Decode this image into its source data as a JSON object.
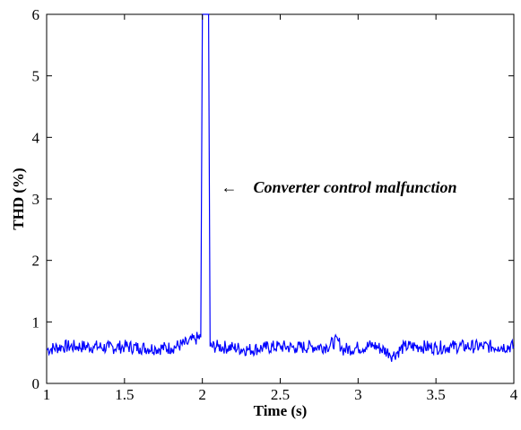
{
  "chart_data": {
    "type": "line",
    "title": "",
    "xlabel": "Time (s)",
    "ylabel": "THD (%)",
    "xlim": [
      1,
      4
    ],
    "ylim": [
      0,
      6
    ],
    "xticks": [
      1,
      1.5,
      2,
      2.5,
      3,
      3.5,
      4
    ],
    "xtick_labels": [
      "1",
      "1.5",
      "2",
      "2.5",
      "3",
      "3.5",
      "4"
    ],
    "yticks": [
      0,
      1,
      2,
      3,
      4,
      5,
      6
    ],
    "ytick_labels": [
      "0",
      "1",
      "2",
      "3",
      "4",
      "5",
      "6"
    ],
    "grid": false,
    "legend": "none",
    "series": [
      {
        "color": "#0000ff",
        "x": [
          1.0,
          1.1,
          1.2,
          1.3,
          1.4,
          1.5,
          1.6,
          1.7,
          1.8,
          1.9,
          1.95,
          1.99,
          2.0,
          2.01,
          2.02,
          2.03,
          2.04,
          2.05,
          2.1,
          2.2,
          2.3,
          2.4,
          2.5,
          2.6,
          2.7,
          2.8,
          2.87,
          2.9,
          3.0,
          3.1,
          3.2,
          3.22,
          3.3,
          3.4,
          3.5,
          3.6,
          3.7,
          3.8,
          3.9,
          4.0
        ],
        "y": [
          0.55,
          0.6,
          0.6,
          0.6,
          0.58,
          0.6,
          0.58,
          0.57,
          0.58,
          0.65,
          0.72,
          0.75,
          6,
          6,
          6,
          6,
          6,
          0.6,
          0.6,
          0.58,
          0.55,
          0.58,
          0.6,
          0.58,
          0.6,
          0.6,
          0.7,
          0.55,
          0.58,
          0.62,
          0.5,
          0.45,
          0.6,
          0.6,
          0.58,
          0.6,
          0.6,
          0.6,
          0.6,
          0.6
        ]
      }
    ],
    "annotations": [
      {
        "text": "Converter control malfunction",
        "x": 2.12,
        "y": 3.1,
        "arrow": "←"
      }
    ]
  }
}
